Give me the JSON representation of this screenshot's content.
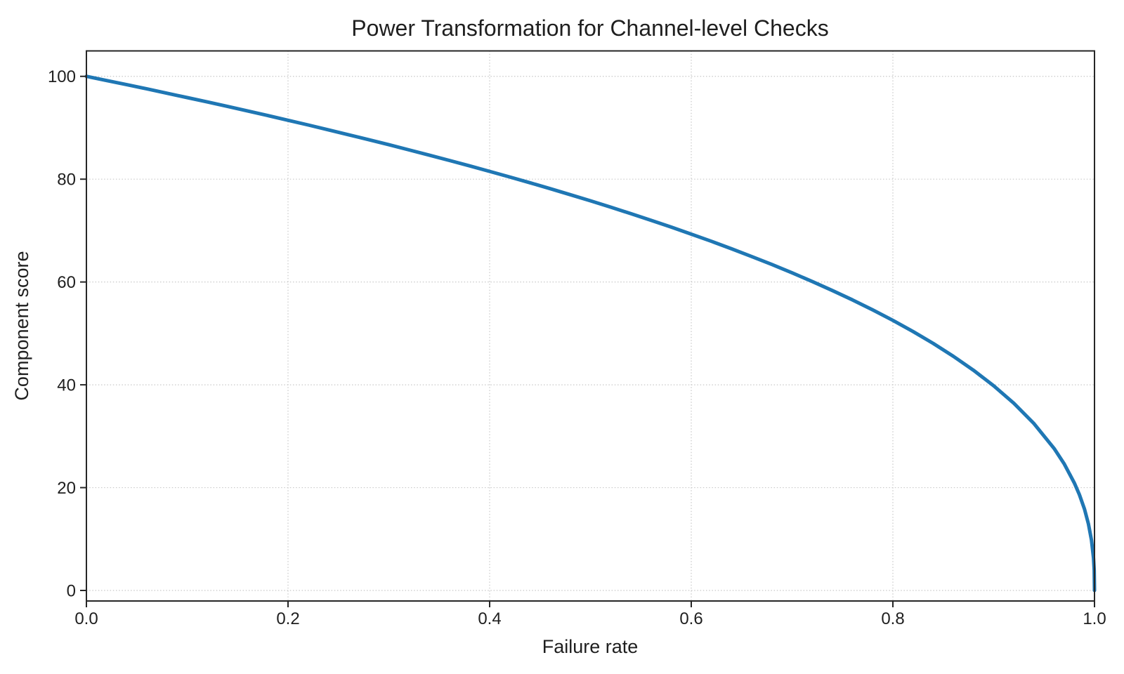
{
  "chart_data": {
    "type": "line",
    "title": "Power Transformation for Channel-level Checks",
    "xlabel": "Failure rate",
    "ylabel": "Component score",
    "xlim": [
      0,
      1
    ],
    "ylim": [
      -2.05,
      104.95
    ],
    "grid": {
      "visible": true,
      "style": "dotted",
      "color": "#c8c8c8"
    },
    "legend": {
      "visible": false
    },
    "frame": "full-box",
    "axis_color": "#262626",
    "text_color": "#1f1f1f",
    "x_ticks": {
      "values": [
        0,
        0.2,
        0.4,
        0.6,
        0.8,
        1.0
      ],
      "labels": [
        "0.0",
        "0.2",
        "0.4",
        "0.6",
        "0.8",
        "1.0"
      ]
    },
    "y_ticks": {
      "values": [
        0,
        20,
        40,
        60,
        80,
        100
      ],
      "labels": [
        "0",
        "20",
        "40",
        "60",
        "80",
        "100"
      ]
    },
    "series": [
      {
        "name": "Component score vs failure rate",
        "color": "#1f77b4",
        "linewidth": 5,
        "points": [
          [
            0,
            100
          ],
          [
            0.02,
            99.19
          ],
          [
            0.04,
            98.38
          ],
          [
            0.06,
            97.56
          ],
          [
            0.08,
            96.72
          ],
          [
            0.1,
            95.87
          ],
          [
            0.12,
            95.02
          ],
          [
            0.14,
            94.15
          ],
          [
            0.16,
            93.26
          ],
          [
            0.18,
            92.37
          ],
          [
            0.2,
            91.46
          ],
          [
            0.22,
            90.54
          ],
          [
            0.24,
            89.6
          ],
          [
            0.26,
            88.65
          ],
          [
            0.28,
            87.69
          ],
          [
            0.3,
            86.7
          ],
          [
            0.32,
            85.7
          ],
          [
            0.34,
            84.69
          ],
          [
            0.36,
            83.65
          ],
          [
            0.38,
            82.6
          ],
          [
            0.4,
            81.52
          ],
          [
            0.42,
            80.42
          ],
          [
            0.44,
            79.3
          ],
          [
            0.46,
            78.16
          ],
          [
            0.48,
            76.98
          ],
          [
            0.5,
            75.79
          ],
          [
            0.52,
            74.56
          ],
          [
            0.54,
            73.3
          ],
          [
            0.56,
            72.01
          ],
          [
            0.58,
            70.68
          ],
          [
            0.6,
            69.31
          ],
          [
            0.62,
            67.91
          ],
          [
            0.64,
            66.45
          ],
          [
            0.66,
            64.95
          ],
          [
            0.68,
            63.4
          ],
          [
            0.7,
            61.78
          ],
          [
            0.72,
            60.1
          ],
          [
            0.74,
            58.34
          ],
          [
            0.76,
            56.51
          ],
          [
            0.78,
            54.57
          ],
          [
            0.8,
            52.53
          ],
          [
            0.82,
            50.36
          ],
          [
            0.84,
            48.05
          ],
          [
            0.86,
            45.55
          ],
          [
            0.88,
            42.82
          ],
          [
            0.9,
            39.81
          ],
          [
            0.92,
            36.41
          ],
          [
            0.94,
            32.45
          ],
          [
            0.96,
            27.6
          ],
          [
            0.97,
            24.6
          ],
          [
            0.98,
            20.91
          ],
          [
            0.985,
            18.64
          ],
          [
            0.99,
            15.85
          ],
          [
            0.994,
            12.92
          ],
          [
            0.997,
            9.79
          ],
          [
            0.999,
            6.31
          ],
          [
            0.9997,
            3.9
          ],
          [
            1,
            0
          ]
        ]
      }
    ]
  }
}
